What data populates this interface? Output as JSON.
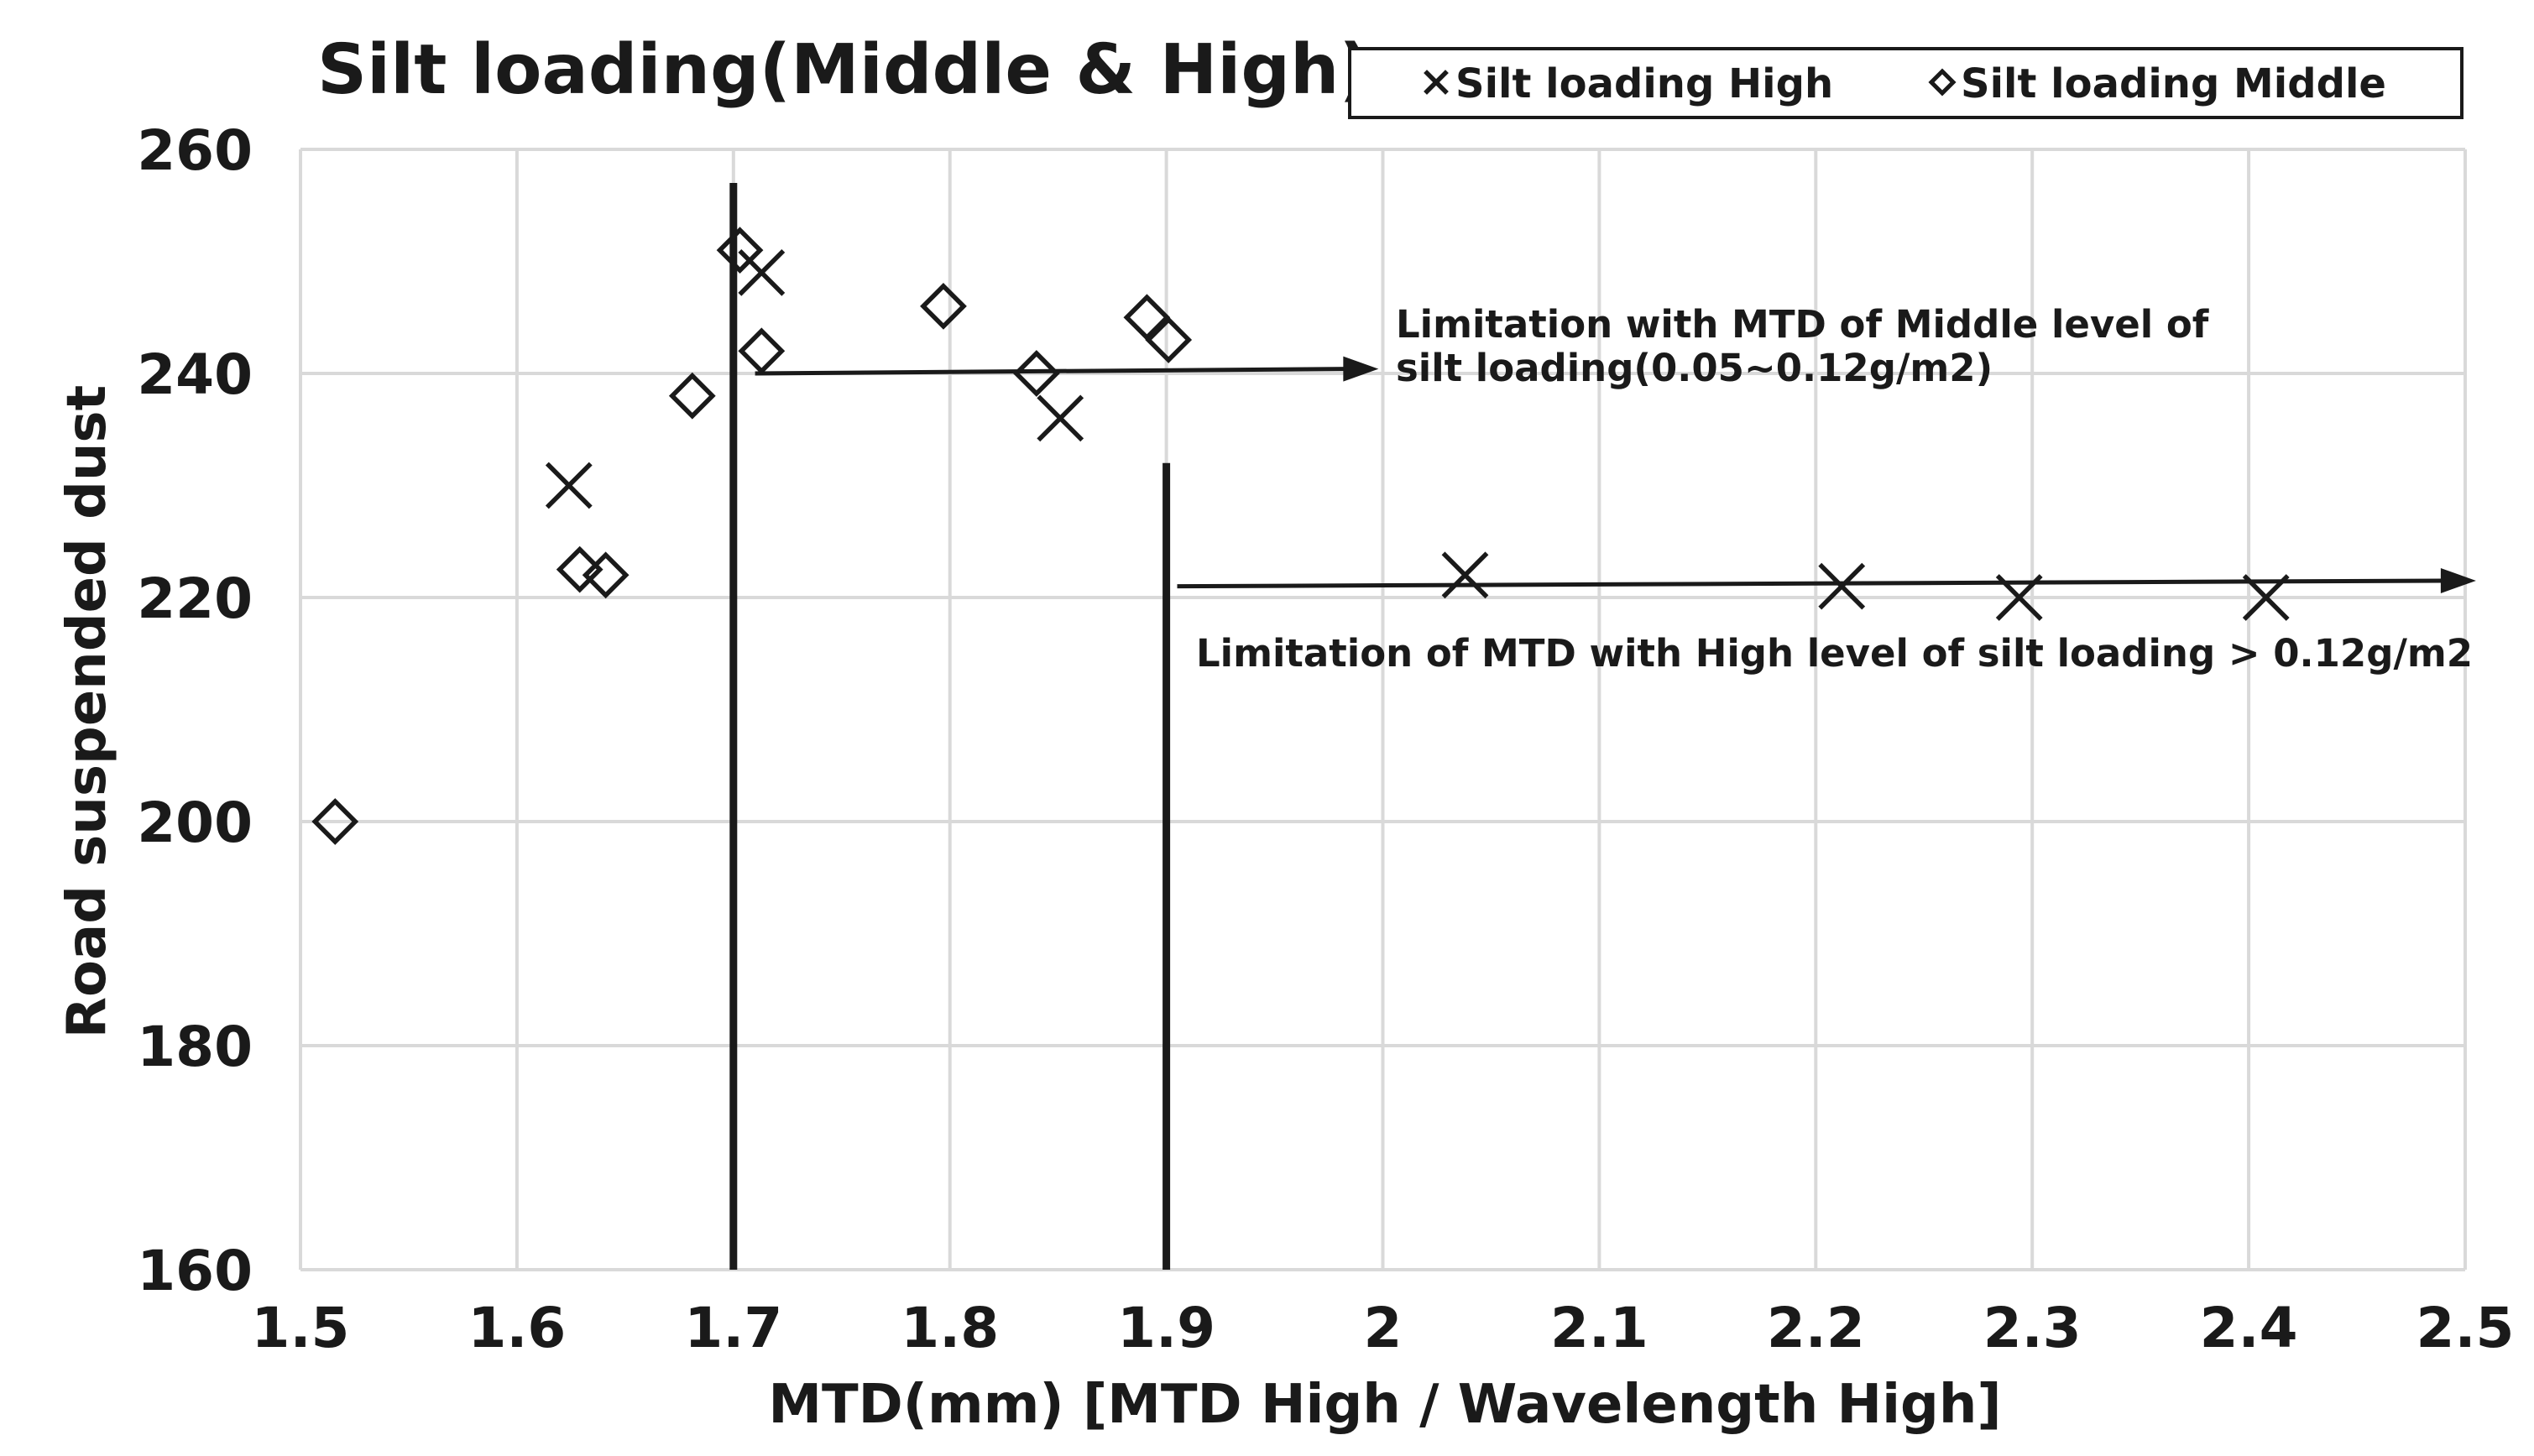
{
  "chart_data": {
    "type": "scatter",
    "title": "Silt loading(Middle & High)",
    "xlabel": "MTD(mm) [MTD High / Wavelength High]",
    "ylabel": "Road suspended dust",
    "xlim": [
      1.5,
      2.5
    ],
    "ylim": [
      160,
      260
    ],
    "x_ticks": [
      "1.5",
      "1.6",
      "1.7",
      "1.8",
      "1.9",
      "2",
      "2.1",
      "2.2",
      "2.3",
      "2.4",
      "2.5"
    ],
    "y_ticks": [
      "160",
      "180",
      "200",
      "220",
      "240",
      "260"
    ],
    "grid": true,
    "legend_position": "top-right",
    "series": [
      {
        "name": "Silt loading High",
        "marker": "x",
        "color": "#1a1a1a",
        "points": [
          {
            "x": 1.624,
            "y": 230
          },
          {
            "x": 1.713,
            "y": 249
          },
          {
            "x": 1.851,
            "y": 236
          },
          {
            "x": 2.038,
            "y": 222
          },
          {
            "x": 2.212,
            "y": 221
          },
          {
            "x": 2.294,
            "y": 220
          },
          {
            "x": 2.408,
            "y": 220
          }
        ]
      },
      {
        "name": "Silt loading Middle",
        "marker": "diamond",
        "color": "#1a1a1a",
        "points": [
          {
            "x": 1.516,
            "y": 200
          },
          {
            "x": 1.629,
            "y": 222.5
          },
          {
            "x": 1.641,
            "y": 222
          },
          {
            "x": 1.681,
            "y": 238
          },
          {
            "x": 1.703,
            "y": 251
          },
          {
            "x": 1.713,
            "y": 242
          },
          {
            "x": 1.797,
            "y": 246
          },
          {
            "x": 1.84,
            "y": 240
          },
          {
            "x": 1.891,
            "y": 245
          },
          {
            "x": 1.901,
            "y": 243
          }
        ]
      }
    ],
    "reference_lines": [
      {
        "x": 1.7,
        "y_from": 160,
        "y_to": 257
      },
      {
        "x": 1.9,
        "y_from": 160,
        "y_to": 232
      }
    ],
    "arrows": [
      {
        "x_from": 1.71,
        "y_from": 240,
        "x_to": 1.998,
        "y_to": 240.4
      },
      {
        "x_from": 1.905,
        "y_from": 221,
        "x_to": 2.505,
        "y_to": 221.5
      }
    ],
    "annotations": [
      {
        "lines": [
          "Limitation with MTD of Middle level of",
          "silt loading(0.05~0.12g/m2)"
        ]
      },
      {
        "lines": [
          "Limitation of MTD with High level of silt loading > 0.12g/m2"
        ]
      }
    ],
    "colors": {
      "ink": "#1a1a1a",
      "grid": "#d9d9d9",
      "background": "#ffffff"
    }
  }
}
